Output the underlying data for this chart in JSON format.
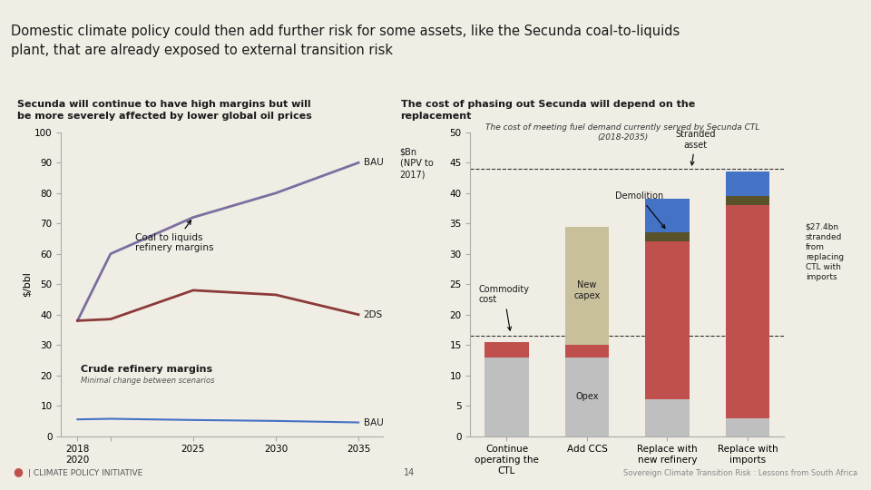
{
  "title": "Domestic climate policy could then add further risk for some assets, like the Secunda coal-to-liquids\nplant, that are already exposed to external transition risk",
  "title_bg": "#cbc7b8",
  "left_subtitle1": "Secunda will continue to have high margins but will\nbe more severely affected by lower global oil prices",
  "right_subtitle1": "The cost of phasing out Secunda will depend on the\nreplacement",
  "right_subtitle2": "The cost of meeting fuel demand currently served by Secunda CTL\n(2018-2035)",
  "left_ylabel": "$/bbl",
  "left_years": [
    2018,
    2020,
    2025,
    2030,
    2035
  ],
  "coal_bau": [
    38,
    60,
    72,
    80,
    90
  ],
  "coal_2ds": [
    38,
    38.5,
    48,
    46.5,
    40
  ],
  "crude_bau": [
    5.5,
    5.7,
    5.3,
    5.0,
    4.5
  ],
  "left_ylim": [
    0,
    100
  ],
  "left_yticks": [
    0,
    10,
    20,
    30,
    40,
    50,
    60,
    70,
    80,
    90,
    100
  ],
  "coal_bau_color": "#7b6fa0",
  "coal_2ds_color": "#8b3a3a",
  "crude_color": "#4472c4",
  "bar_categories": [
    "Continue\noperating the\nCTL",
    "Add CCS",
    "Replace with\nnew refinery",
    "Replace with\nimports"
  ],
  "bar_opex": [
    13.0,
    13.0,
    6.0,
    3.0
  ],
  "bar_commodity": [
    2.5,
    2.0,
    0,
    0
  ],
  "bar_capex": [
    0,
    19.5,
    0,
    0
  ],
  "bar_red": [
    0,
    0,
    26.0,
    35.0
  ],
  "bar_dark": [
    0,
    0,
    1.5,
    1.5
  ],
  "bar_blue": [
    0,
    0,
    5.5,
    4.0
  ],
  "opex_color": "#c0bfbf",
  "commodity_color": "#c0504d",
  "capex_color": "#c8bf9b",
  "red_color": "#c0504d",
  "dark_color": "#5a5228",
  "blue_color": "#4472c4",
  "right_ylim": [
    0,
    50
  ],
  "right_yticks": [
    0,
    5,
    10,
    15,
    20,
    25,
    30,
    35,
    40,
    45,
    50
  ],
  "right_ylabel": "$Bn\n(NPV to\n2017)",
  "dashed_upper": 44,
  "dashed_lower": 16.5,
  "bg_color": "#f0ede4",
  "footer_left": "CLIMATE POLICY INITIATIVE",
  "footer_right": "Sovereign Climate Transition Risk : Lessons from South Africa",
  "page_num": "14"
}
